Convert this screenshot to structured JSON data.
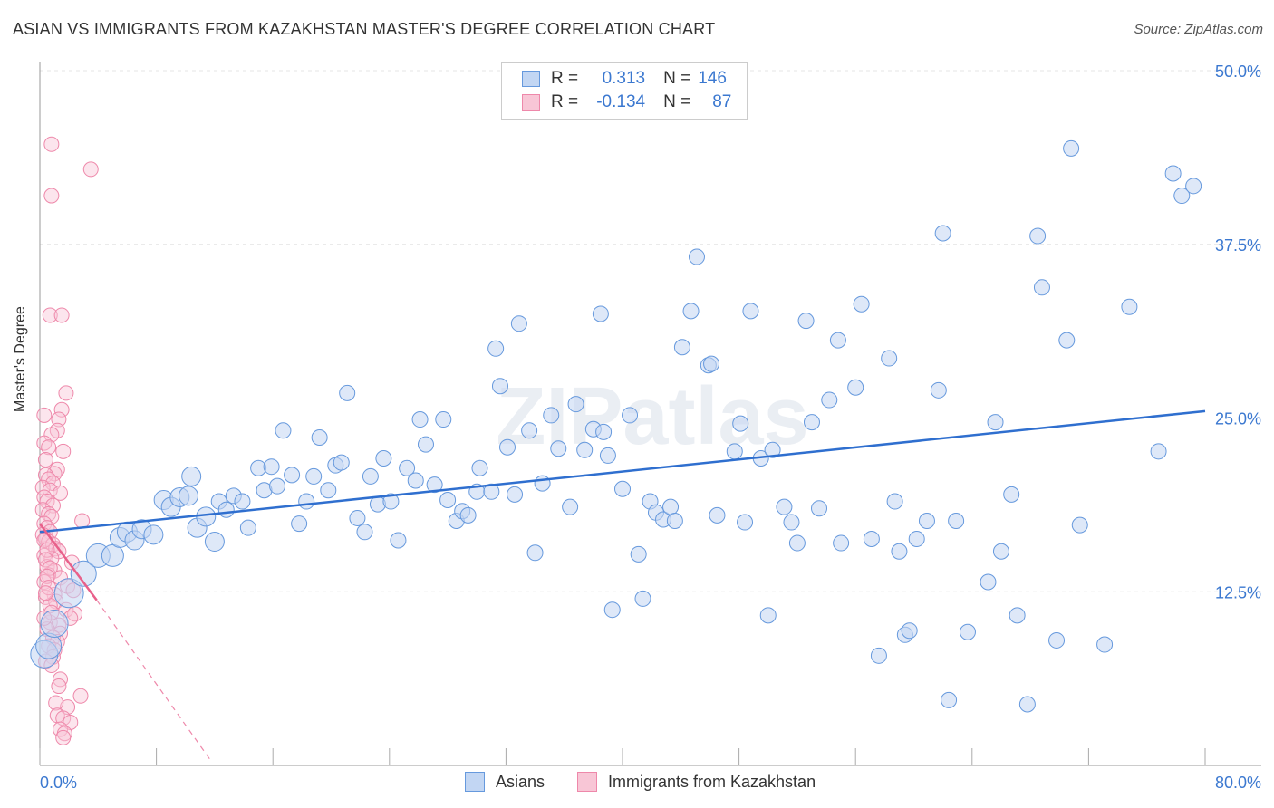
{
  "title": "ASIAN VS IMMIGRANTS FROM KAZAKHSTAN MASTER'S DEGREE CORRELATION CHART",
  "source": "Source: ZipAtlas.com",
  "watermark": "ZIPatlas",
  "legend": {
    "asian": {
      "r_label": "R =",
      "r_value": "0.313",
      "n_label": "N =",
      "n_value": "146",
      "color": "#6699dd"
    },
    "kazakh": {
      "r_label": "R =",
      "r_value": "-0.134",
      "n_label": "N =",
      "n_value": "87",
      "color": "#ee88aa"
    }
  },
  "bottom_legend": {
    "asian": "Asians",
    "kazakh": "Immigrants from Kazakhstan"
  },
  "chart_data": {
    "type": "scatter",
    "xlabel": "",
    "ylabel": "Master's Degree",
    "xlim": [
      0,
      80
    ],
    "ylim": [
      0,
      50
    ],
    "x_tick_labels": [
      "0.0%",
      "80.0%"
    ],
    "y_ticks": [
      12.5,
      25.0,
      37.5,
      50.0
    ],
    "y_tick_labels": [
      "12.5%",
      "25.0%",
      "37.5%",
      "50.0%"
    ],
    "series": [
      {
        "name": "Asians",
        "color": "#6699dd",
        "trend": {
          "x": [
            0,
            80
          ],
          "y": [
            16.8,
            25.5
          ]
        },
        "points": [
          [
            0.3,
            8.0
          ],
          [
            0.6,
            8.6
          ],
          [
            1.0,
            10.2
          ],
          [
            2.0,
            12.4
          ],
          [
            3.0,
            13.8
          ],
          [
            4.0,
            15.1
          ],
          [
            5.0,
            15.1
          ],
          [
            5.5,
            16.4
          ],
          [
            6.0,
            16.8
          ],
          [
            6.5,
            16.2
          ],
          [
            7.0,
            17.0
          ],
          [
            7.8,
            16.6
          ],
          [
            8.5,
            19.1
          ],
          [
            9.0,
            18.6
          ],
          [
            9.6,
            19.3
          ],
          [
            10.2,
            19.4
          ],
          [
            10.4,
            20.8
          ],
          [
            10.8,
            17.1
          ],
          [
            11.4,
            17.9
          ],
          [
            12.0,
            16.1
          ],
          [
            12.3,
            19.0
          ],
          [
            12.8,
            18.4
          ],
          [
            13.3,
            19.4
          ],
          [
            13.9,
            19.0
          ],
          [
            14.3,
            17.1
          ],
          [
            15.0,
            21.4
          ],
          [
            15.4,
            19.8
          ],
          [
            15.9,
            21.5
          ],
          [
            16.3,
            20.1
          ],
          [
            16.7,
            24.1
          ],
          [
            17.3,
            20.9
          ],
          [
            17.8,
            17.4
          ],
          [
            18.3,
            19.0
          ],
          [
            18.8,
            20.8
          ],
          [
            19.2,
            23.6
          ],
          [
            19.8,
            19.8
          ],
          [
            20.3,
            21.6
          ],
          [
            20.7,
            21.8
          ],
          [
            21.1,
            26.8
          ],
          [
            21.8,
            17.8
          ],
          [
            22.3,
            16.8
          ],
          [
            22.7,
            20.8
          ],
          [
            23.2,
            18.8
          ],
          [
            23.6,
            22.1
          ],
          [
            24.1,
            19.0
          ],
          [
            24.6,
            16.2
          ],
          [
            25.2,
            21.4
          ],
          [
            25.8,
            20.5
          ],
          [
            26.1,
            24.9
          ],
          [
            26.5,
            23.1
          ],
          [
            27.1,
            20.2
          ],
          [
            27.7,
            24.9
          ],
          [
            28.0,
            19.1
          ],
          [
            28.6,
            17.6
          ],
          [
            29.0,
            18.3
          ],
          [
            29.4,
            18.0
          ],
          [
            30.0,
            19.7
          ],
          [
            30.2,
            21.4
          ],
          [
            31.0,
            19.7
          ],
          [
            31.3,
            30.0
          ],
          [
            31.6,
            27.3
          ],
          [
            32.1,
            22.9
          ],
          [
            32.6,
            19.5
          ],
          [
            32.9,
            31.8
          ],
          [
            33.6,
            24.1
          ],
          [
            34.0,
            15.3
          ],
          [
            34.5,
            20.3
          ],
          [
            35.1,
            25.2
          ],
          [
            35.6,
            22.8
          ],
          [
            36.4,
            18.6
          ],
          [
            36.8,
            26.0
          ],
          [
            37.4,
            22.7
          ],
          [
            38.0,
            24.2
          ],
          [
            38.5,
            32.5
          ],
          [
            38.7,
            24.0
          ],
          [
            39.0,
            22.3
          ],
          [
            39.3,
            11.2
          ],
          [
            40.0,
            19.9
          ],
          [
            40.5,
            25.2
          ],
          [
            41.1,
            15.2
          ],
          [
            41.4,
            12.0
          ],
          [
            41.9,
            19.0
          ],
          [
            42.3,
            18.2
          ],
          [
            42.8,
            17.7
          ],
          [
            43.3,
            18.6
          ],
          [
            43.6,
            17.6
          ],
          [
            44.1,
            30.1
          ],
          [
            44.7,
            32.7
          ],
          [
            45.1,
            36.6
          ],
          [
            45.9,
            28.8
          ],
          [
            46.1,
            28.9
          ],
          [
            46.5,
            18.0
          ],
          [
            47.7,
            22.6
          ],
          [
            48.1,
            24.6
          ],
          [
            48.4,
            17.5
          ],
          [
            48.8,
            32.7
          ],
          [
            49.5,
            22.1
          ],
          [
            50.0,
            10.8
          ],
          [
            50.3,
            22.7
          ],
          [
            51.1,
            18.6
          ],
          [
            51.6,
            17.5
          ],
          [
            52.0,
            16.0
          ],
          [
            52.6,
            32.0
          ],
          [
            53.0,
            24.7
          ],
          [
            53.5,
            18.5
          ],
          [
            54.2,
            26.3
          ],
          [
            54.8,
            30.6
          ],
          [
            55.0,
            16.0
          ],
          [
            56.0,
            27.2
          ],
          [
            56.4,
            33.2
          ],
          [
            57.1,
            16.3
          ],
          [
            57.6,
            7.9
          ],
          [
            58.3,
            29.3
          ],
          [
            58.7,
            19.0
          ],
          [
            59.0,
            15.4
          ],
          [
            59.4,
            9.4
          ],
          [
            59.7,
            9.7
          ],
          [
            60.2,
            16.3
          ],
          [
            60.9,
            17.6
          ],
          [
            61.7,
            27.0
          ],
          [
            62.0,
            38.3
          ],
          [
            62.4,
            4.7
          ],
          [
            62.9,
            17.6
          ],
          [
            63.7,
            9.6
          ],
          [
            65.1,
            13.2
          ],
          [
            65.6,
            24.7
          ],
          [
            66.0,
            15.4
          ],
          [
            66.7,
            19.5
          ],
          [
            67.1,
            10.8
          ],
          [
            67.8,
            4.4
          ],
          [
            68.5,
            38.1
          ],
          [
            68.8,
            34.4
          ],
          [
            69.8,
            9.0
          ],
          [
            70.5,
            30.6
          ],
          [
            70.8,
            44.4
          ],
          [
            71.4,
            17.3
          ],
          [
            73.1,
            8.7
          ],
          [
            74.8,
            33.0
          ],
          [
            76.8,
            22.6
          ],
          [
            77.8,
            42.6
          ],
          [
            78.4,
            41.0
          ],
          [
            79.2,
            41.7
          ]
        ]
      },
      {
        "name": "Immigrants from Kazakhstan",
        "color": "#ee88aa",
        "trend": {
          "x": [
            0,
            3.9
          ],
          "y": [
            17.4,
            11.9
          ]
        },
        "trend_ext": {
          "x": [
            3.9,
            11.7
          ],
          "y": [
            11.9,
            0.4
          ]
        },
        "points": [
          [
            0.8,
            44.7
          ],
          [
            3.5,
            42.9
          ],
          [
            0.8,
            41.0
          ],
          [
            0.7,
            32.4
          ],
          [
            1.5,
            32.4
          ],
          [
            1.8,
            26.8
          ],
          [
            1.5,
            25.6
          ],
          [
            0.3,
            25.2
          ],
          [
            1.3,
            24.9
          ],
          [
            1.2,
            24.1
          ],
          [
            0.8,
            23.8
          ],
          [
            0.3,
            23.2
          ],
          [
            0.6,
            22.9
          ],
          [
            1.6,
            22.6
          ],
          [
            0.4,
            22.0
          ],
          [
            1.2,
            21.3
          ],
          [
            1.0,
            21.0
          ],
          [
            0.4,
            20.9
          ],
          [
            0.6,
            20.6
          ],
          [
            0.9,
            20.3
          ],
          [
            0.2,
            20.0
          ],
          [
            0.7,
            19.8
          ],
          [
            1.4,
            19.6
          ],
          [
            0.3,
            19.3
          ],
          [
            0.5,
            19.0
          ],
          [
            0.9,
            18.7
          ],
          [
            0.2,
            18.4
          ],
          [
            0.6,
            18.1
          ],
          [
            0.8,
            17.9
          ],
          [
            2.9,
            17.6
          ],
          [
            0.3,
            17.4
          ],
          [
            0.5,
            17.1
          ],
          [
            0.7,
            16.8
          ],
          [
            0.2,
            16.6
          ],
          [
            0.4,
            16.3
          ],
          [
            0.6,
            16.1
          ],
          [
            0.9,
            15.9
          ],
          [
            1.1,
            15.6
          ],
          [
            1.3,
            15.4
          ],
          [
            0.3,
            15.1
          ],
          [
            0.8,
            14.9
          ],
          [
            2.2,
            14.6
          ],
          [
            0.5,
            14.3
          ],
          [
            1.0,
            14.0
          ],
          [
            0.6,
            13.7
          ],
          [
            1.4,
            13.5
          ],
          [
            0.3,
            13.2
          ],
          [
            1.9,
            12.9
          ],
          [
            2.3,
            12.6
          ],
          [
            1.0,
            12.3
          ],
          [
            0.4,
            12.1
          ],
          [
            1.1,
            11.8
          ],
          [
            0.7,
            11.5
          ],
          [
            1.8,
            11.2
          ],
          [
            2.4,
            10.9
          ],
          [
            2.1,
            10.6
          ],
          [
            0.7,
            10.3
          ],
          [
            1.3,
            10.1
          ],
          [
            0.5,
            9.8
          ],
          [
            1.4,
            9.5
          ],
          [
            0.9,
            9.2
          ],
          [
            1.2,
            8.9
          ],
          [
            0.6,
            8.6
          ],
          [
            1.0,
            8.3
          ],
          [
            0.9,
            7.8
          ],
          [
            0.4,
            7.5
          ],
          [
            0.8,
            7.2
          ],
          [
            1.4,
            6.2
          ],
          [
            1.3,
            5.7
          ],
          [
            2.8,
            5.0
          ],
          [
            1.9,
            4.2
          ],
          [
            1.1,
            4.5
          ],
          [
            1.2,
            3.6
          ],
          [
            1.6,
            3.4
          ],
          [
            2.1,
            3.1
          ],
          [
            1.4,
            2.6
          ],
          [
            1.7,
            2.3
          ],
          [
            1.6,
            2.0
          ],
          [
            0.3,
            16.2
          ],
          [
            0.5,
            15.5
          ],
          [
            0.4,
            14.8
          ],
          [
            0.7,
            14.2
          ],
          [
            0.5,
            13.6
          ],
          [
            0.6,
            12.8
          ],
          [
            0.4,
            12.4
          ],
          [
            0.8,
            11.0
          ],
          [
            0.3,
            10.6
          ]
        ]
      }
    ]
  }
}
